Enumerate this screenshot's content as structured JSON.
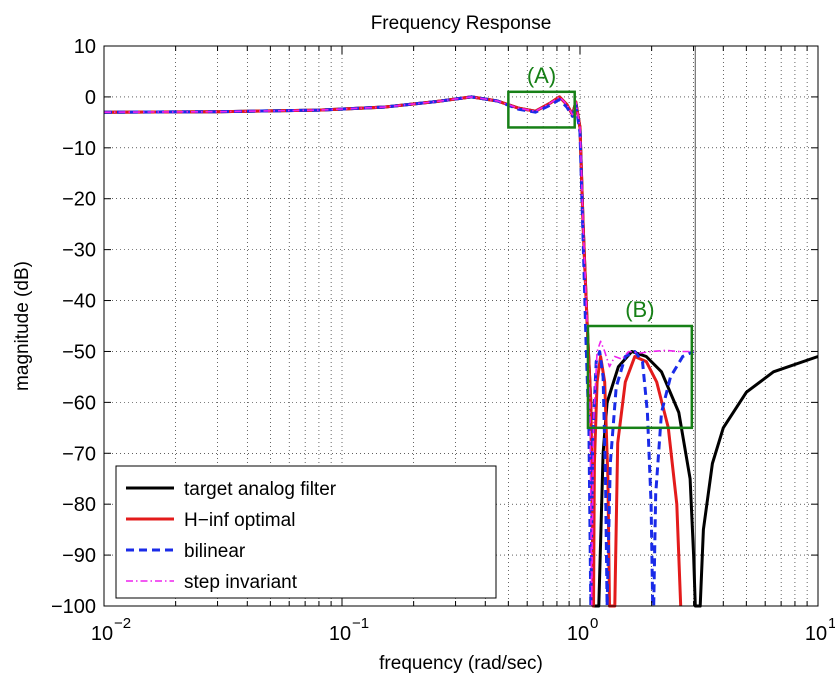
{
  "chart_data": {
    "type": "line",
    "title": "Frequency Response",
    "xlabel": "frequency (rad/sec)",
    "ylabel": "magnitude (dB)",
    "x_scale": "log",
    "xlim": [
      0.01,
      10
    ],
    "ylim": [
      -100,
      10
    ],
    "grid": true,
    "x_ticks": [
      {
        "value": 0.01,
        "base": "10",
        "exp": "−2"
      },
      {
        "value": 0.1,
        "base": "10",
        "exp": "−1"
      },
      {
        "value": 1,
        "base": "10",
        "exp": "0"
      },
      {
        "value": 10,
        "base": "10",
        "exp": "1"
      }
    ],
    "y_ticks": [
      {
        "value": 10,
        "label": "10"
      },
      {
        "value": 0,
        "label": "0"
      },
      {
        "value": -10,
        "label": "−10"
      },
      {
        "value": -20,
        "label": "−20"
      },
      {
        "value": -30,
        "label": "−30"
      },
      {
        "value": -40,
        "label": "−40"
      },
      {
        "value": -50,
        "label": "−50"
      },
      {
        "value": -60,
        "label": "−60"
      },
      {
        "value": -70,
        "label": "−70"
      },
      {
        "value": -80,
        "label": "−80"
      },
      {
        "value": -90,
        "label": "−90"
      },
      {
        "value": -100,
        "label": "−100"
      }
    ],
    "legend": {
      "placement": "bottom-left",
      "entries": [
        "target analog filter",
        "H−inf optimal",
        "bilinear",
        "step invariant"
      ]
    },
    "series": [
      {
        "name": "target analog filter",
        "color": "#000000",
        "style": "solid",
        "points": [
          [
            0.01,
            -3
          ],
          [
            0.03,
            -2.9
          ],
          [
            0.08,
            -2.6
          ],
          [
            0.15,
            -2
          ],
          [
            0.25,
            -0.9
          ],
          [
            0.35,
            0
          ],
          [
            0.45,
            -0.8
          ],
          [
            0.55,
            -2.2
          ],
          [
            0.65,
            -2.8
          ],
          [
            0.75,
            -1.2
          ],
          [
            0.82,
            0
          ],
          [
            0.88,
            -1.5
          ],
          [
            0.93,
            -3.5
          ],
          [
            0.96,
            -1
          ],
          [
            1.0,
            -6
          ],
          [
            1.03,
            -25
          ],
          [
            1.07,
            -44
          ],
          [
            1.11,
            -60
          ],
          [
            1.14,
            -100
          ],
          [
            1.2,
            -100
          ],
          [
            1.25,
            -70
          ],
          [
            1.3,
            -60
          ],
          [
            1.45,
            -53
          ],
          [
            1.65,
            -50
          ],
          [
            1.9,
            -51
          ],
          [
            2.2,
            -54
          ],
          [
            2.6,
            -62
          ],
          [
            2.9,
            -75
          ],
          [
            3.0,
            -90
          ],
          [
            3.05,
            -100
          ],
          [
            3.2,
            -100
          ],
          [
            3.3,
            -85
          ],
          [
            3.6,
            -72
          ],
          [
            4.0,
            -65
          ],
          [
            5.0,
            -58
          ],
          [
            6.5,
            -54
          ],
          [
            10,
            -51
          ]
        ]
      },
      {
        "name": "H−inf optimal",
        "color": "#e31b1b",
        "style": "solid",
        "points": [
          [
            0.01,
            -3
          ],
          [
            0.03,
            -2.9
          ],
          [
            0.08,
            -2.6
          ],
          [
            0.15,
            -2
          ],
          [
            0.25,
            -0.9
          ],
          [
            0.35,
            0
          ],
          [
            0.45,
            -0.8
          ],
          [
            0.55,
            -2.2
          ],
          [
            0.65,
            -2.8
          ],
          [
            0.75,
            -1.2
          ],
          [
            0.82,
            0
          ],
          [
            0.88,
            -1.5
          ],
          [
            0.93,
            -3.5
          ],
          [
            0.96,
            -1
          ],
          [
            1.0,
            -6
          ],
          [
            1.03,
            -25
          ],
          [
            1.07,
            -44
          ],
          [
            1.11,
            -60
          ],
          [
            1.14,
            -100
          ],
          [
            1.14,
            -100
          ],
          [
            1.15,
            -72
          ],
          [
            1.18,
            -56
          ],
          [
            1.22,
            -51
          ],
          [
            1.27,
            -56
          ],
          [
            1.31,
            -75
          ],
          [
            1.33,
            -100
          ],
          [
            1.4,
            -100
          ],
          [
            1.44,
            -68
          ],
          [
            1.55,
            -56
          ],
          [
            1.7,
            -51
          ],
          [
            1.9,
            -52
          ],
          [
            2.1,
            -56
          ],
          [
            2.35,
            -65
          ],
          [
            2.55,
            -80
          ],
          [
            2.65,
            -100
          ]
        ]
      },
      {
        "name": "bilinear",
        "color": "#1a2be8",
        "style": "dashed",
        "points": [
          [
            0.01,
            -3
          ],
          [
            0.03,
            -2.9
          ],
          [
            0.08,
            -2.6
          ],
          [
            0.15,
            -2
          ],
          [
            0.25,
            -0.9
          ],
          [
            0.35,
            0
          ],
          [
            0.45,
            -0.8
          ],
          [
            0.55,
            -2.4
          ],
          [
            0.65,
            -3
          ],
          [
            0.75,
            -1.6
          ],
          [
            0.82,
            -0.5
          ],
          [
            0.88,
            -2
          ],
          [
            0.93,
            -3.8
          ],
          [
            0.96,
            -1.5
          ],
          [
            1.0,
            -7
          ],
          [
            1.03,
            -28
          ],
          [
            1.06,
            -48
          ],
          [
            1.09,
            -65
          ],
          [
            1.11,
            -100
          ],
          [
            1.11,
            -100
          ],
          [
            1.13,
            -68
          ],
          [
            1.17,
            -52
          ],
          [
            1.21,
            -50
          ],
          [
            1.25,
            -55
          ],
          [
            1.28,
            -75
          ],
          [
            1.3,
            -100
          ],
          [
            1.3,
            -100
          ],
          [
            1.34,
            -72
          ],
          [
            1.42,
            -57
          ],
          [
            1.55,
            -51
          ],
          [
            1.7,
            -50
          ],
          [
            1.83,
            -52
          ],
          [
            1.92,
            -62
          ],
          [
            1.99,
            -80
          ],
          [
            2.02,
            -100
          ],
          [
            2.04,
            -100
          ],
          [
            2.08,
            -78
          ],
          [
            2.2,
            -62
          ],
          [
            2.4,
            -55
          ],
          [
            2.7,
            -51
          ],
          [
            3.0,
            -50
          ]
        ]
      },
      {
        "name": "step invariant",
        "color": "#ee22ee",
        "style": "dashdot",
        "points": [
          [
            0.01,
            -3
          ],
          [
            0.03,
            -2.9
          ],
          [
            0.08,
            -2.6
          ],
          [
            0.15,
            -2
          ],
          [
            0.25,
            -0.9
          ],
          [
            0.35,
            0
          ],
          [
            0.45,
            -0.8
          ],
          [
            0.55,
            -2.2
          ],
          [
            0.65,
            -2.8
          ],
          [
            0.75,
            -1.2
          ],
          [
            0.82,
            0
          ],
          [
            0.88,
            -1.5
          ],
          [
            0.93,
            -3.5
          ],
          [
            0.96,
            -1
          ],
          [
            1.0,
            -6
          ],
          [
            1.03,
            -25
          ],
          [
            1.07,
            -44
          ],
          [
            1.1,
            -60
          ],
          [
            1.12,
            -100
          ],
          [
            1.12,
            -100
          ],
          [
            1.14,
            -64
          ],
          [
            1.18,
            -50
          ],
          [
            1.22,
            -48
          ],
          [
            1.27,
            -50
          ],
          [
            1.33,
            -53
          ],
          [
            1.4,
            -51
          ],
          [
            1.5,
            -51.5
          ],
          [
            1.6,
            -50
          ],
          [
            1.8,
            -50.3
          ],
          [
            2.0,
            -50
          ],
          [
            2.3,
            -49.8
          ],
          [
            2.6,
            -50
          ],
          [
            3.0,
            -50
          ]
        ]
      }
    ],
    "annotations": [
      {
        "label": "(A)",
        "color": "#178017",
        "box_x": [
          0.5,
          0.95
        ],
        "box_y": [
          -6,
          1
        ]
      },
      {
        "label": "(B)",
        "color": "#178017",
        "box_x": [
          1.08,
          2.95
        ],
        "box_y": [
          -65,
          -45
        ]
      }
    ],
    "reference_line": {
      "x": 3.05,
      "color": "#555555"
    }
  }
}
